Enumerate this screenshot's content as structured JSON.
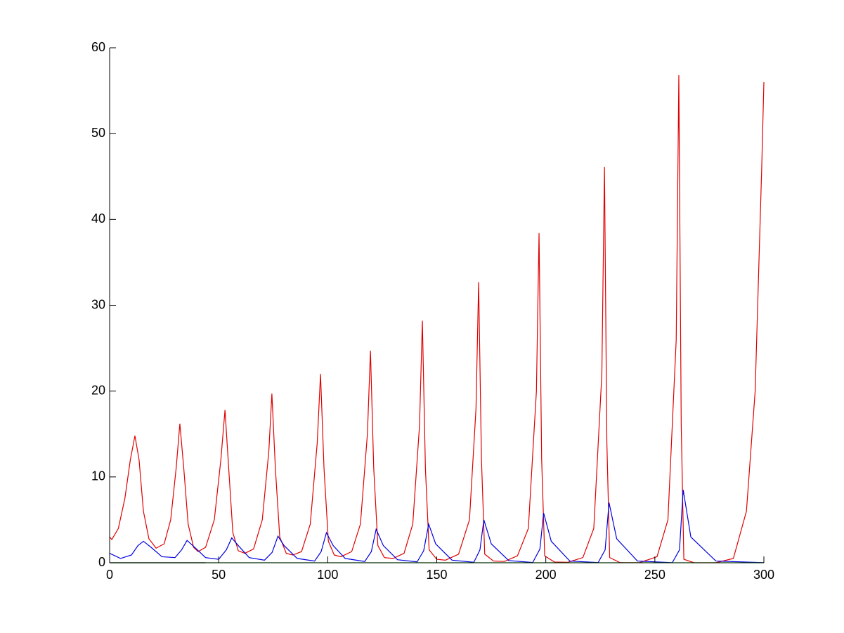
{
  "chart_data": {
    "type": "line",
    "xlim": [
      0,
      300
    ],
    "ylim": [
      0,
      60
    ],
    "xticks": [
      0,
      50,
      100,
      150,
      200,
      250,
      300
    ],
    "yticks": [
      0,
      10,
      20,
      30,
      40,
      50,
      60
    ],
    "grid": false,
    "series": [
      {
        "color": "#e00000",
        "x": [
          0,
          1,
          4,
          7,
          9.5,
          11.6,
          13.5,
          15.5,
          18,
          21.3,
          25,
          28,
          30.5,
          32.2,
          34,
          36,
          38.5,
          40.6,
          44,
          48,
          51,
          52.9,
          54.6,
          56.5,
          59,
          62,
          66,
          70,
          73,
          74.4,
          76,
          78,
          81,
          84,
          88,
          92,
          95.2,
          96.7,
          98.3,
          100.3,
          103,
          106,
          111,
          115,
          118.2,
          119.6,
          121.1,
          123,
          126,
          130,
          135,
          139,
          142.1,
          143.4,
          144.8,
          146.5,
          150,
          154,
          160,
          165,
          168,
          169.2,
          170.5,
          172,
          176,
          181,
          187,
          192,
          195.7,
          196.9,
          198.1,
          199.5,
          204,
          210,
          217,
          222,
          225.7,
          226.9,
          228,
          229.3,
          234,
          243,
          251,
          256,
          259.8,
          261,
          262.1,
          263.3,
          268,
          278,
          286,
          292,
          296,
          299,
          300
        ],
        "values": [
          3.0,
          2.7,
          4,
          7.5,
          12,
          14.8,
          12,
          6,
          2.8,
          1.7,
          2.2,
          5,
          11,
          16.2,
          11,
          4.5,
          1.8,
          1.3,
          1.8,
          5,
          12,
          17.8,
          11,
          3.5,
          1.4,
          1.1,
          1.6,
          5,
          13,
          19.7,
          11,
          3,
          1.1,
          0.9,
          1.3,
          4.5,
          14,
          22,
          11,
          2.5,
          0.9,
          0.7,
          1.3,
          4.5,
          15,
          24.7,
          11,
          2,
          0.6,
          0.5,
          1.1,
          4.5,
          16,
          28.2,
          11,
          1.5,
          0.4,
          0.3,
          1,
          5,
          18,
          32.7,
          12,
          1,
          0.2,
          0.15,
          0.8,
          4,
          20,
          38.4,
          12,
          0.8,
          0.08,
          0.05,
          0.6,
          4,
          22,
          46.1,
          14,
          0.6,
          0.02,
          0.01,
          0.7,
          5,
          26,
          56.8,
          16,
          0.4,
          0,
          0,
          0.5,
          6,
          20,
          46,
          56
        ]
      },
      {
        "color": "#0000e0",
        "x": [
          0,
          5,
          10,
          13,
          15.5,
          19,
          24,
          30,
          33,
          35.5,
          39,
          44,
          50,
          53.5,
          56,
          59,
          64,
          71,
          74.5,
          77.2,
          80,
          86,
          94,
          97,
          99.4,
          102.5,
          108,
          117,
          120,
          122.2,
          125.5,
          132,
          141,
          144,
          146.3,
          149.5,
          157,
          167,
          169.8,
          171.6,
          175,
          183,
          194,
          197.3,
          199,
          202.5,
          211,
          224,
          227.2,
          229,
          232.5,
          242,
          258,
          261.3,
          263,
          266.5,
          278,
          300
        ],
        "values": [
          1.1,
          0.5,
          0.9,
          2,
          2.5,
          1.8,
          0.7,
          0.6,
          1.5,
          2.6,
          1.8,
          0.6,
          0.4,
          1.5,
          2.9,
          2,
          0.6,
          0.3,
          1.2,
          3.1,
          2,
          0.5,
          0.2,
          1.3,
          3.5,
          2,
          0.5,
          0.15,
          1.3,
          3.9,
          2,
          0.35,
          0.1,
          1.4,
          4.5,
          2.2,
          0.3,
          0.05,
          1.5,
          5,
          2.2,
          0.25,
          0.03,
          1.6,
          5.8,
          2.5,
          0.2,
          0.02,
          1.5,
          7,
          2.8,
          0.2,
          0.01,
          1.5,
          8.5,
          3,
          0.2,
          0.01
        ]
      },
      {
        "color": "#00e000",
        "x": [
          0,
          300
        ],
        "values": [
          0,
          0
        ]
      },
      {
        "color": "#000000",
        "x": [
          0,
          44
        ],
        "values": [
          0,
          0
        ]
      }
    ]
  }
}
